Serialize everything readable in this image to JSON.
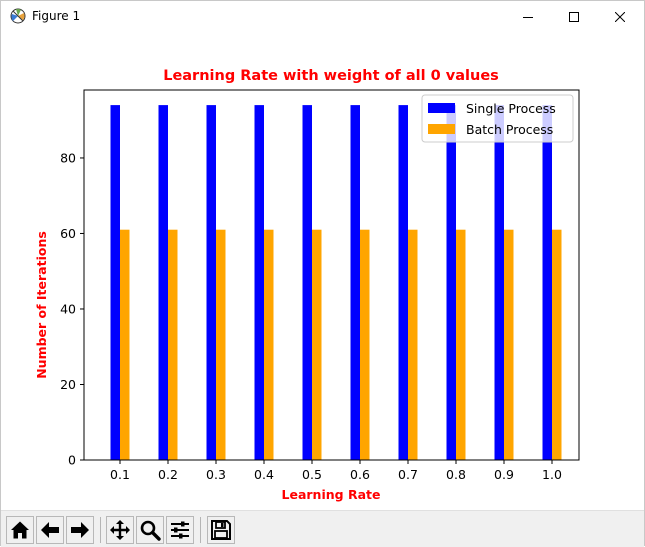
{
  "window": {
    "title": "Figure 1",
    "icons": {
      "app": "matplotlib-icon",
      "minimize": "minimize-icon",
      "maximize": "maximize-icon",
      "close": "close-icon"
    }
  },
  "toolbar": {
    "buttons": [
      {
        "name": "home-button",
        "icon": "home-icon"
      },
      {
        "name": "back-button",
        "icon": "back-arrow-icon"
      },
      {
        "name": "forward-button",
        "icon": "forward-arrow-icon"
      },
      {
        "name": "pan-button",
        "icon": "pan-move-icon"
      },
      {
        "name": "zoom-button",
        "icon": "zoom-magnifier-icon"
      },
      {
        "name": "subplots-button",
        "icon": "subplots-sliders-icon"
      },
      {
        "name": "save-button",
        "icon": "save-disk-icon"
      }
    ]
  },
  "chart_data": {
    "type": "bar",
    "title": "Learning Rate with weight of all 0 values",
    "xlabel": "Learning Rate",
    "ylabel": "Number of Iterations",
    "categories": [
      "0.1",
      "0.2",
      "0.3",
      "0.4",
      "0.5",
      "0.6",
      "0.7",
      "0.8",
      "0.9",
      "1.0"
    ],
    "yticks": [
      "0",
      "20",
      "40",
      "60",
      "80"
    ],
    "ylim": [
      0,
      98
    ],
    "series": [
      {
        "name": "Single Process",
        "color": "#0000ff",
        "values": [
          94,
          94,
          94,
          94,
          94,
          94,
          94,
          94,
          94,
          94
        ]
      },
      {
        "name": "Batch Process",
        "color": "#ffa500",
        "values": [
          61,
          61,
          61,
          61,
          61,
          61,
          61,
          61,
          61,
          61
        ]
      }
    ],
    "legend": "top-right",
    "title_color": "#ff0000",
    "label_color": "#ff0000",
    "grid": false
  }
}
